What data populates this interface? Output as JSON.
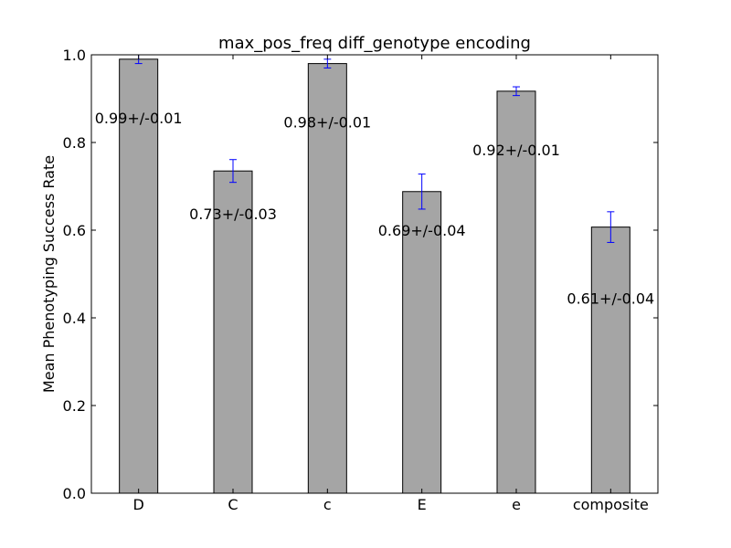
{
  "chart_data": {
    "type": "bar",
    "title": "max_pos_freq diff_genotype encoding",
    "xlabel": "",
    "ylabel": "Mean Phenotyping Success Rate",
    "categories": [
      "D",
      "C",
      "c",
      "E",
      "e",
      "composite"
    ],
    "values": [
      0.99,
      0.735,
      0.98,
      0.688,
      0.917,
      0.607
    ],
    "errors": [
      0.01,
      0.026,
      0.01,
      0.04,
      0.01,
      0.035
    ],
    "data_labels": [
      "0.99+/-0.01",
      "0.73+/-0.03",
      "0.98+/-0.01",
      "0.69+/-0.04",
      "0.92+/-0.01",
      "0.61+/-0.04"
    ],
    "ylim": [
      0,
      1.0
    ],
    "yticks": [
      0.0,
      0.2,
      0.4,
      0.6,
      0.8,
      1.0
    ],
    "ytick_labels": [
      "0.0",
      "0.2",
      "0.4",
      "0.6",
      "0.8",
      "1.0"
    ],
    "grid": false,
    "legend": "none",
    "bar_color": "#a5a5a5",
    "bar_edge_color": "#000000",
    "errorbar_color": "#0000ff"
  }
}
